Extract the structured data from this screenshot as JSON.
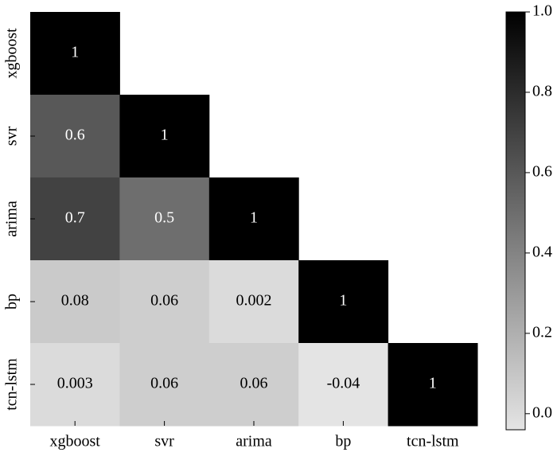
{
  "chart_data": {
    "type": "heatmap",
    "categories": [
      "xgboost",
      "svr",
      "arima",
      "bp",
      "tcn-lstm"
    ],
    "values": [
      [
        1,
        null,
        null,
        null,
        null
      ],
      [
        0.6,
        1,
        null,
        null,
        null
      ],
      [
        0.7,
        0.5,
        1,
        null,
        null
      ],
      [
        0.08,
        0.06,
        0.002,
        1,
        null
      ],
      [
        0.003,
        0.06,
        0.06,
        -0.04,
        1
      ]
    ],
    "cmap": [
      "#e4e4e4",
      "#000000"
    ],
    "zlim": [
      -0.04,
      1
    ],
    "zticks": [
      {
        "value": 0,
        "label": "0.0"
      },
      0.2,
      0.4,
      0.6,
      0.8,
      {
        "value": 1,
        "label": "1.0"
      }
    ]
  }
}
